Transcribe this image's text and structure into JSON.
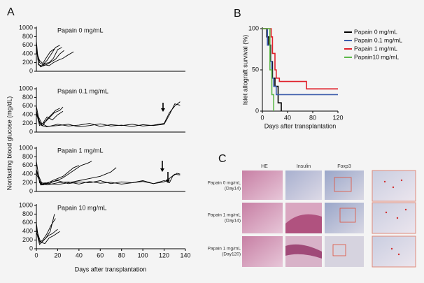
{
  "panel_labels": [
    "A",
    "B",
    "C"
  ],
  "panel_a": {
    "ylabel": "Nonfasting blood glucose (mg/dL)",
    "xlabel": "Days after transplantation"
  },
  "chart_data": [
    {
      "type": "line",
      "annotation": "Papain 0 mg/mL",
      "xlim": [
        0,
        140
      ],
      "ylim": [
        0,
        1000
      ],
      "yticks": [
        0,
        200,
        400,
        600,
        800,
        1000
      ],
      "series": [
        {
          "color": "#000000",
          "x": [
            0,
            2,
            5,
            8,
            12,
            16,
            20,
            24
          ],
          "values": [
            600,
            150,
            120,
            180,
            200,
            300,
            500,
            550
          ]
        },
        {
          "color": "#000000",
          "x": [
            0,
            3,
            6,
            10,
            14,
            18,
            22
          ],
          "values": [
            500,
            200,
            150,
            250,
            400,
            550,
            600
          ]
        },
        {
          "color": "#000000",
          "x": [
            0,
            2,
            4,
            8,
            12,
            16,
            20,
            25,
            30,
            35
          ],
          "values": [
            550,
            180,
            100,
            150,
            130,
            200,
            250,
            300,
            380,
            450
          ]
        },
        {
          "color": "#000000",
          "x": [
            0,
            3,
            6,
            9,
            13,
            17
          ],
          "values": [
            450,
            250,
            180,
            300,
            450,
            520
          ]
        },
        {
          "color": "#000000",
          "x": [
            0,
            2,
            6,
            10,
            14,
            18,
            22,
            26
          ],
          "values": [
            700,
            150,
            120,
            160,
            220,
            280,
            400,
            480
          ]
        }
      ]
    },
    {
      "type": "line",
      "annotation": "Papain 0.1 mg/mL",
      "xlim": [
        0,
        140
      ],
      "ylim": [
        0,
        1000
      ],
      "yticks": [
        0,
        200,
        400,
        600,
        800,
        1000
      ],
      "series": [
        {
          "color": "#000000",
          "x": [
            0,
            3,
            6,
            10,
            14,
            18,
            22
          ],
          "values": [
            600,
            200,
            150,
            300,
            400,
            500,
            550
          ]
        },
        {
          "color": "#000000",
          "x": [
            0,
            2,
            5,
            9,
            13,
            17,
            22,
            25
          ],
          "values": [
            500,
            250,
            180,
            250,
            350,
            450,
            500,
            580
          ]
        },
        {
          "color": "#000000",
          "x": [
            0,
            3,
            6,
            10,
            15,
            20,
            25
          ],
          "values": [
            450,
            150,
            200,
            350,
            280,
            400,
            480
          ]
        },
        {
          "color": "#000000",
          "x": [
            0,
            5,
            10,
            20,
            30,
            40,
            50,
            60,
            70,
            80,
            90,
            100,
            110,
            120,
            125,
            130,
            135
          ],
          "values": [
            400,
            150,
            120,
            180,
            140,
            160,
            200,
            130,
            170,
            150,
            180,
            140,
            160,
            200,
            450,
            600,
            700
          ]
        },
        {
          "color": "#000000",
          "x": [
            0,
            5,
            10,
            20,
            30,
            40,
            50,
            60,
            70,
            80,
            90,
            100,
            110,
            120,
            125,
            130,
            135
          ],
          "values": [
            450,
            200,
            130,
            150,
            180,
            120,
            150,
            190,
            140,
            160,
            130,
            170,
            150,
            180,
            400,
            650,
            620
          ]
        }
      ]
    },
    {
      "type": "line",
      "annotation": "Papain 1 mg/mL",
      "xlim": [
        0,
        140
      ],
      "ylim": [
        0,
        1000
      ],
      "yticks": [
        0,
        200,
        400,
        600,
        800,
        1000
      ],
      "series": [
        {
          "color": "#000000",
          "x": [
            0,
            3,
            6,
            10,
            15,
            20,
            25,
            30,
            35,
            40
          ],
          "values": [
            700,
            200,
            150,
            180,
            250,
            300,
            350,
            450,
            550,
            600
          ]
        },
        {
          "color": "#000000",
          "x": [
            0,
            4,
            8,
            12,
            18,
            24,
            30,
            36,
            42,
            48,
            52
          ],
          "values": [
            500,
            150,
            200,
            180,
            250,
            300,
            400,
            500,
            600,
            650,
            700
          ]
        },
        {
          "color": "#000000",
          "x": [
            0,
            5,
            10,
            20,
            30,
            40,
            50,
            60,
            70,
            75
          ],
          "values": [
            450,
            200,
            180,
            160,
            200,
            250,
            300,
            350,
            450,
            550
          ]
        },
        {
          "color": "#000000",
          "x": [
            0,
            5,
            10,
            20,
            30,
            40,
            50,
            60,
            70,
            80,
            90,
            100,
            110,
            120,
            125,
            130,
            135
          ],
          "values": [
            400,
            150,
            200,
            250,
            180,
            220,
            200,
            250,
            180,
            220,
            200,
            250,
            180,
            220,
            300,
            400,
            380
          ]
        },
        {
          "color": "#000000",
          "x": [
            0,
            5,
            10,
            20,
            30,
            40,
            50,
            60,
            70,
            80,
            90,
            100,
            110,
            120,
            125,
            128,
            132,
            135
          ],
          "values": [
            500,
            180,
            150,
            200,
            220,
            170,
            230,
            190,
            210,
            170,
            200,
            230,
            180,
            250,
            200,
            350,
            420,
            400
          ]
        }
      ]
    },
    {
      "type": "line",
      "annotation": "Papain 10 mg/mL",
      "xlim": [
        0,
        140
      ],
      "ylim": [
        0,
        1000
      ],
      "yticks": [
        0,
        200,
        400,
        600,
        800,
        1000
      ],
      "xticks": [
        0,
        20,
        40,
        60,
        80,
        100,
        120,
        140
      ],
      "series": [
        {
          "color": "#000000",
          "x": [
            0,
            3,
            6,
            10,
            14,
            18
          ],
          "values": [
            500,
            150,
            200,
            350,
            550,
            700
          ]
        },
        {
          "color": "#000000",
          "x": [
            0,
            2,
            5,
            9,
            13,
            17
          ],
          "values": [
            600,
            200,
            150,
            250,
            400,
            800
          ]
        },
        {
          "color": "#000000",
          "x": [
            0,
            3,
            7,
            11,
            15,
            20
          ],
          "values": [
            400,
            100,
            200,
            300,
            350,
            450
          ]
        },
        {
          "color": "#000000",
          "x": [
            0,
            4,
            8,
            12,
            16,
            22
          ],
          "values": [
            450,
            150,
            120,
            250,
            300,
            400
          ]
        }
      ]
    },
    {
      "type": "step",
      "ylabel": "Islet allograft survival (%)",
      "xlabel": "Days after transplantation",
      "xlim": [
        0,
        120
      ],
      "xticks": [
        0,
        40,
        80,
        120
      ],
      "ylim": [
        0,
        100
      ],
      "yticks": [
        0,
        50,
        100
      ],
      "series": [
        {
          "name": "Papain 0 mg/mL",
          "color": "#000000",
          "x": [
            0,
            7,
            10,
            13,
            16,
            20,
            25,
            30
          ],
          "values": [
            100,
            90,
            80,
            60,
            40,
            30,
            10,
            0
          ]
        },
        {
          "name": "Papain 0.1 mg/mL",
          "color": "#3b5bab",
          "x": [
            0,
            8,
            12,
            15,
            18,
            22,
            120
          ],
          "values": [
            100,
            80,
            60,
            40,
            30,
            20,
            20
          ]
        },
        {
          "name": "Papain 1 mg/mL",
          "color": "#e0202a",
          "x": [
            0,
            14,
            16,
            20,
            22,
            27,
            70,
            120
          ],
          "values": [
            100,
            90,
            70,
            50,
            40,
            36,
            27,
            27
          ]
        },
        {
          "name": "Papain10 mg/mL",
          "color": "#5cb848",
          "x": [
            0,
            12,
            15,
            18
          ],
          "values": [
            100,
            50,
            20,
            0
          ]
        }
      ]
    }
  ],
  "histology": {
    "columns": [
      "HE",
      "Insulin",
      "Foxp3"
    ],
    "rows": [
      [
        "Papain 0 mg/mL",
        "(Day14)"
      ],
      [
        "Papain 1 mg/mL",
        "(Day14)"
      ],
      [
        "Papain 1 mg/mL",
        "(Day120)"
      ]
    ]
  }
}
